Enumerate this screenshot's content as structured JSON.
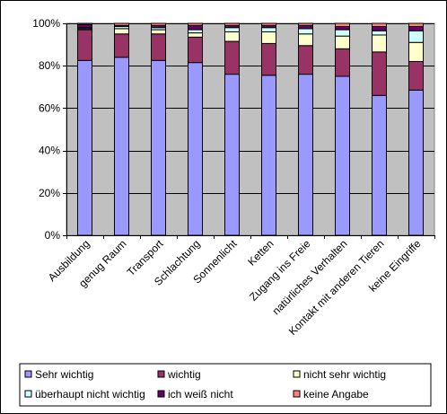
{
  "chart_data": {
    "type": "bar",
    "stacked": "percent",
    "title": "",
    "xlabel": "",
    "ylabel": "",
    "ylim": [
      0,
      100
    ],
    "y_ticks": [
      "0%",
      "20%",
      "40%",
      "60%",
      "80%",
      "100%"
    ],
    "y_tick_values": [
      0,
      20,
      40,
      60,
      80,
      100
    ],
    "grid": true,
    "legend_position": "bottom",
    "plot_background": "#c0c0c0",
    "categories": [
      "Ausbildung",
      "genug Raum",
      "Transport",
      "Schlachtung",
      "Sonnenlicht",
      "Ketten",
      "Zugang ins Freie",
      "natürliches Verhalten",
      "Kontakt mit anderen Tieren",
      "keine Eingriffe"
    ],
    "series": [
      {
        "name": "Sehr wichtig",
        "color": "#9999ff",
        "values": [
          82.5,
          84,
          82.5,
          81.5,
          76,
          75.5,
          76,
          75,
          66,
          68.5
        ]
      },
      {
        "name": "wichtig",
        "color": "#993366",
        "values": [
          14.5,
          11,
          12.5,
          12,
          15.5,
          15,
          13.5,
          13,
          20.5,
          13.5
        ]
      },
      {
        "name": "nicht sehr wichtig",
        "color": "#ffffcc",
        "values": [
          0.5,
          2.5,
          2,
          2,
          4.5,
          5.5,
          5.5,
          6,
          8,
          9
        ]
      },
      {
        "name": "überhaupt nicht wichtig",
        "color": "#ccffff",
        "values": [
          0.5,
          1,
          1,
          1.5,
          2,
          2,
          2.5,
          3,
          2,
          5.5
        ]
      },
      {
        "name": "ich weiß nicht",
        "color": "#660066",
        "values": [
          1.5,
          0.5,
          1,
          2,
          1,
          1,
          1.5,
          1.5,
          2,
          2
        ]
      },
      {
        "name": "keine Angabe",
        "color": "#ff8080",
        "values": [
          0.5,
          1,
          1,
          1,
          1,
          1,
          1,
          1.5,
          1.5,
          1.5
        ]
      }
    ]
  }
}
